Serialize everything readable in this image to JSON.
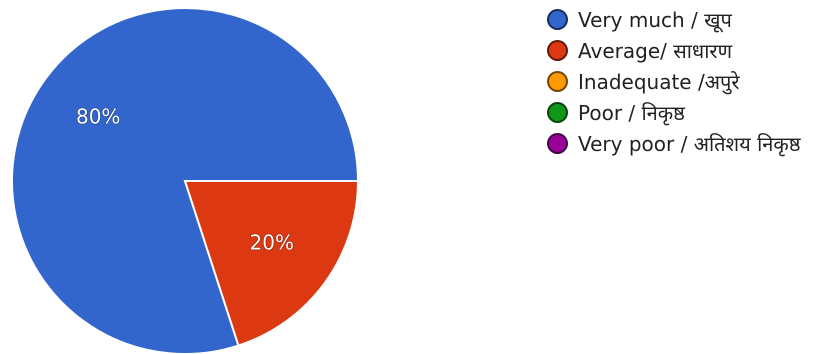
{
  "chart_data": {
    "type": "pie",
    "legend_position": "right",
    "categories": [
      "Very much / खूप",
      "Average/ साधारण",
      "Inadequate /अपुरे",
      "Poor / निकृष्ठ",
      "Very poor / अतिशय निकृष्ठ"
    ],
    "values": [
      80,
      20,
      0,
      0,
      0
    ],
    "slice_labels": [
      "80%",
      "20%",
      "",
      "",
      ""
    ],
    "colors": [
      "#3366cc",
      "#dc3912",
      "#ff9900",
      "#109618",
      "#990099"
    ]
  }
}
